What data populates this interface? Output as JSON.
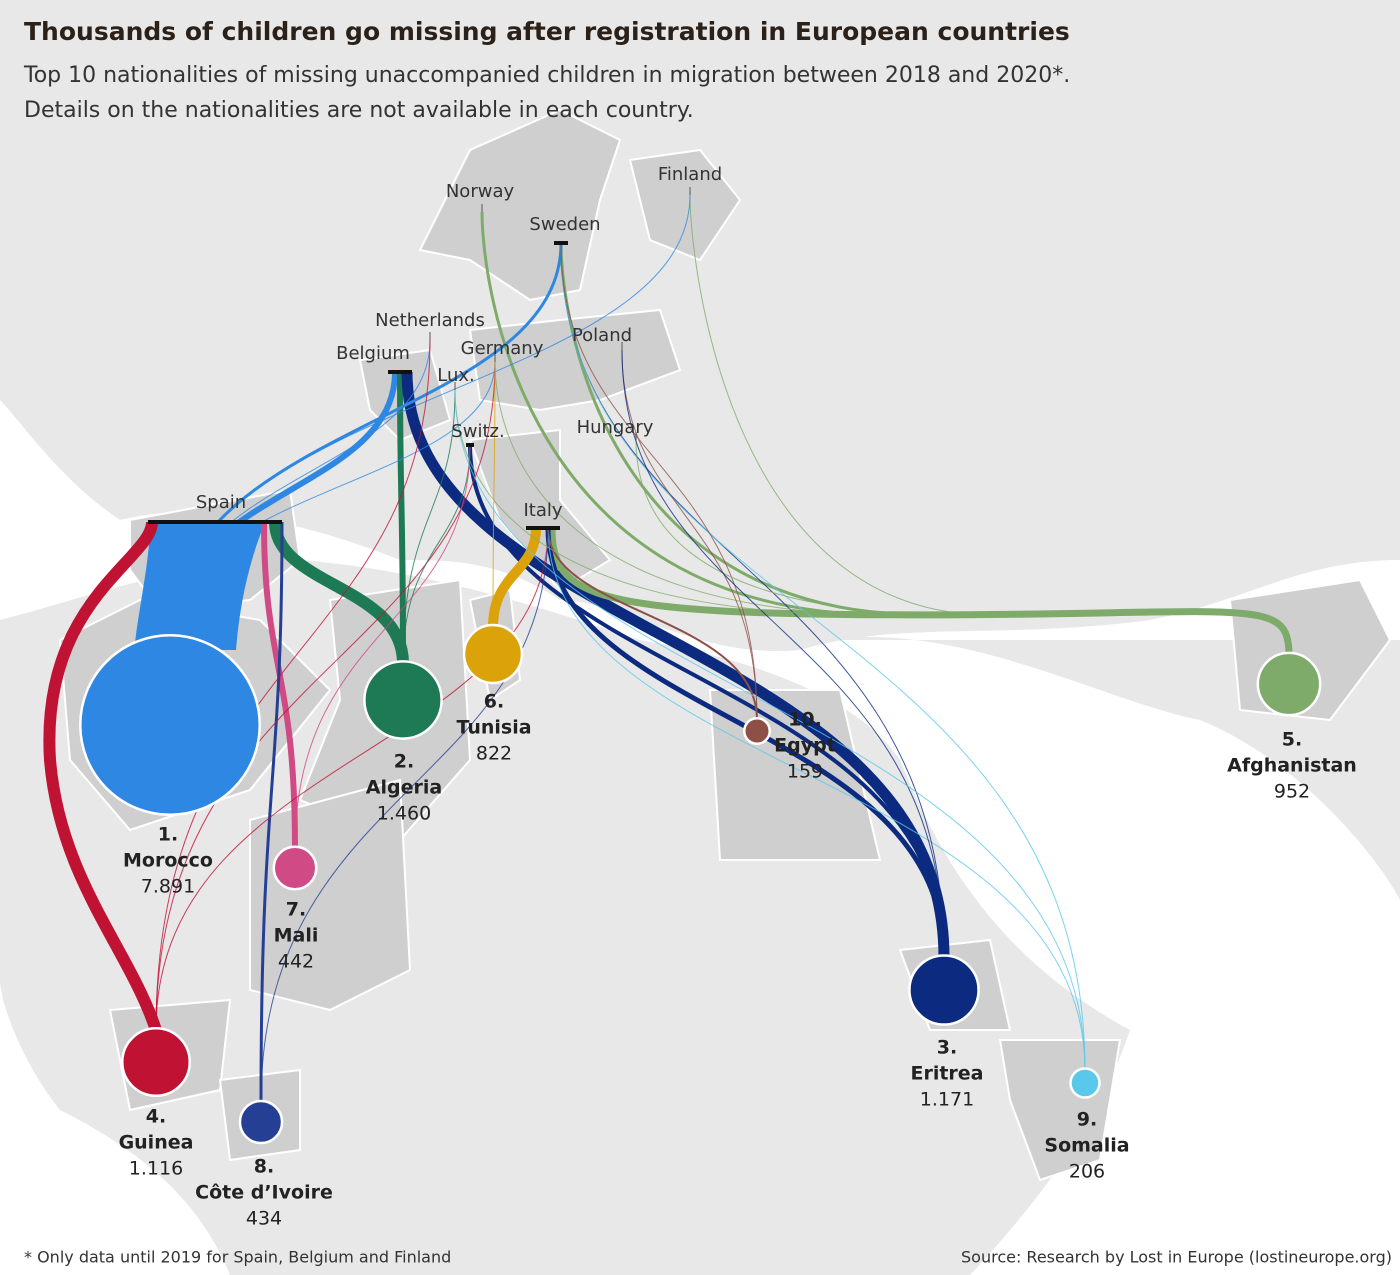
{
  "title": "Thousands of children go missing after registration in European countries",
  "subtitle": [
    "Top 10 nationalities of missing unaccompanied children in migration between 2018 and 2020*.",
    "Details on the nationalities are not available in each country."
  ],
  "destinations": [
    "Norway",
    "Finland",
    "Sweden",
    "Netherlands",
    "Belgium",
    "Germany",
    "Lux.",
    "Poland",
    "Switz.",
    "Hungary",
    "Spain",
    "Italy"
  ],
  "nationalities": [
    {
      "rank": "1.",
      "name": "Morocco",
      "value": 7891,
      "value_label": "7.891",
      "color": "#2e88e3"
    },
    {
      "rank": "2.",
      "name": "Algeria",
      "value": 1460,
      "value_label": "1.460",
      "color": "#1e7a55"
    },
    {
      "rank": "3.",
      "name": "Eritrea",
      "value": 1171,
      "value_label": "1.171",
      "color": "#0b2a80"
    },
    {
      "rank": "4.",
      "name": "Guinea",
      "value": 1116,
      "value_label": "1.116",
      "color": "#c01233"
    },
    {
      "rank": "5.",
      "name": "Afghanistan",
      "value": 952,
      "value_label": "952",
      "color": "#7fab6a"
    },
    {
      "rank": "6.",
      "name": "Tunisia",
      "value": 822,
      "value_label": "822",
      "color": "#dca20a"
    },
    {
      "rank": "7.",
      "name": "Mali",
      "value": 442,
      "value_label": "442",
      "color": "#d04a85"
    },
    {
      "rank": "8.",
      "name": "Côte d’Ivoire",
      "value": 434,
      "value_label": "434",
      "color": "#253f94"
    },
    {
      "rank": "9.",
      "name": "Somalia",
      "value": 206,
      "value_label": "206",
      "color": "#5ac8ea"
    },
    {
      "rank": "10.",
      "name": "Egypt",
      "value": 159,
      "value_label": "159",
      "color": "#8c5047"
    }
  ],
  "footnote": "* Only data until 2019 for Spain, Belgium and Finland",
  "source": "Source: Research by Lost in Europe (lostineurope.org)"
}
